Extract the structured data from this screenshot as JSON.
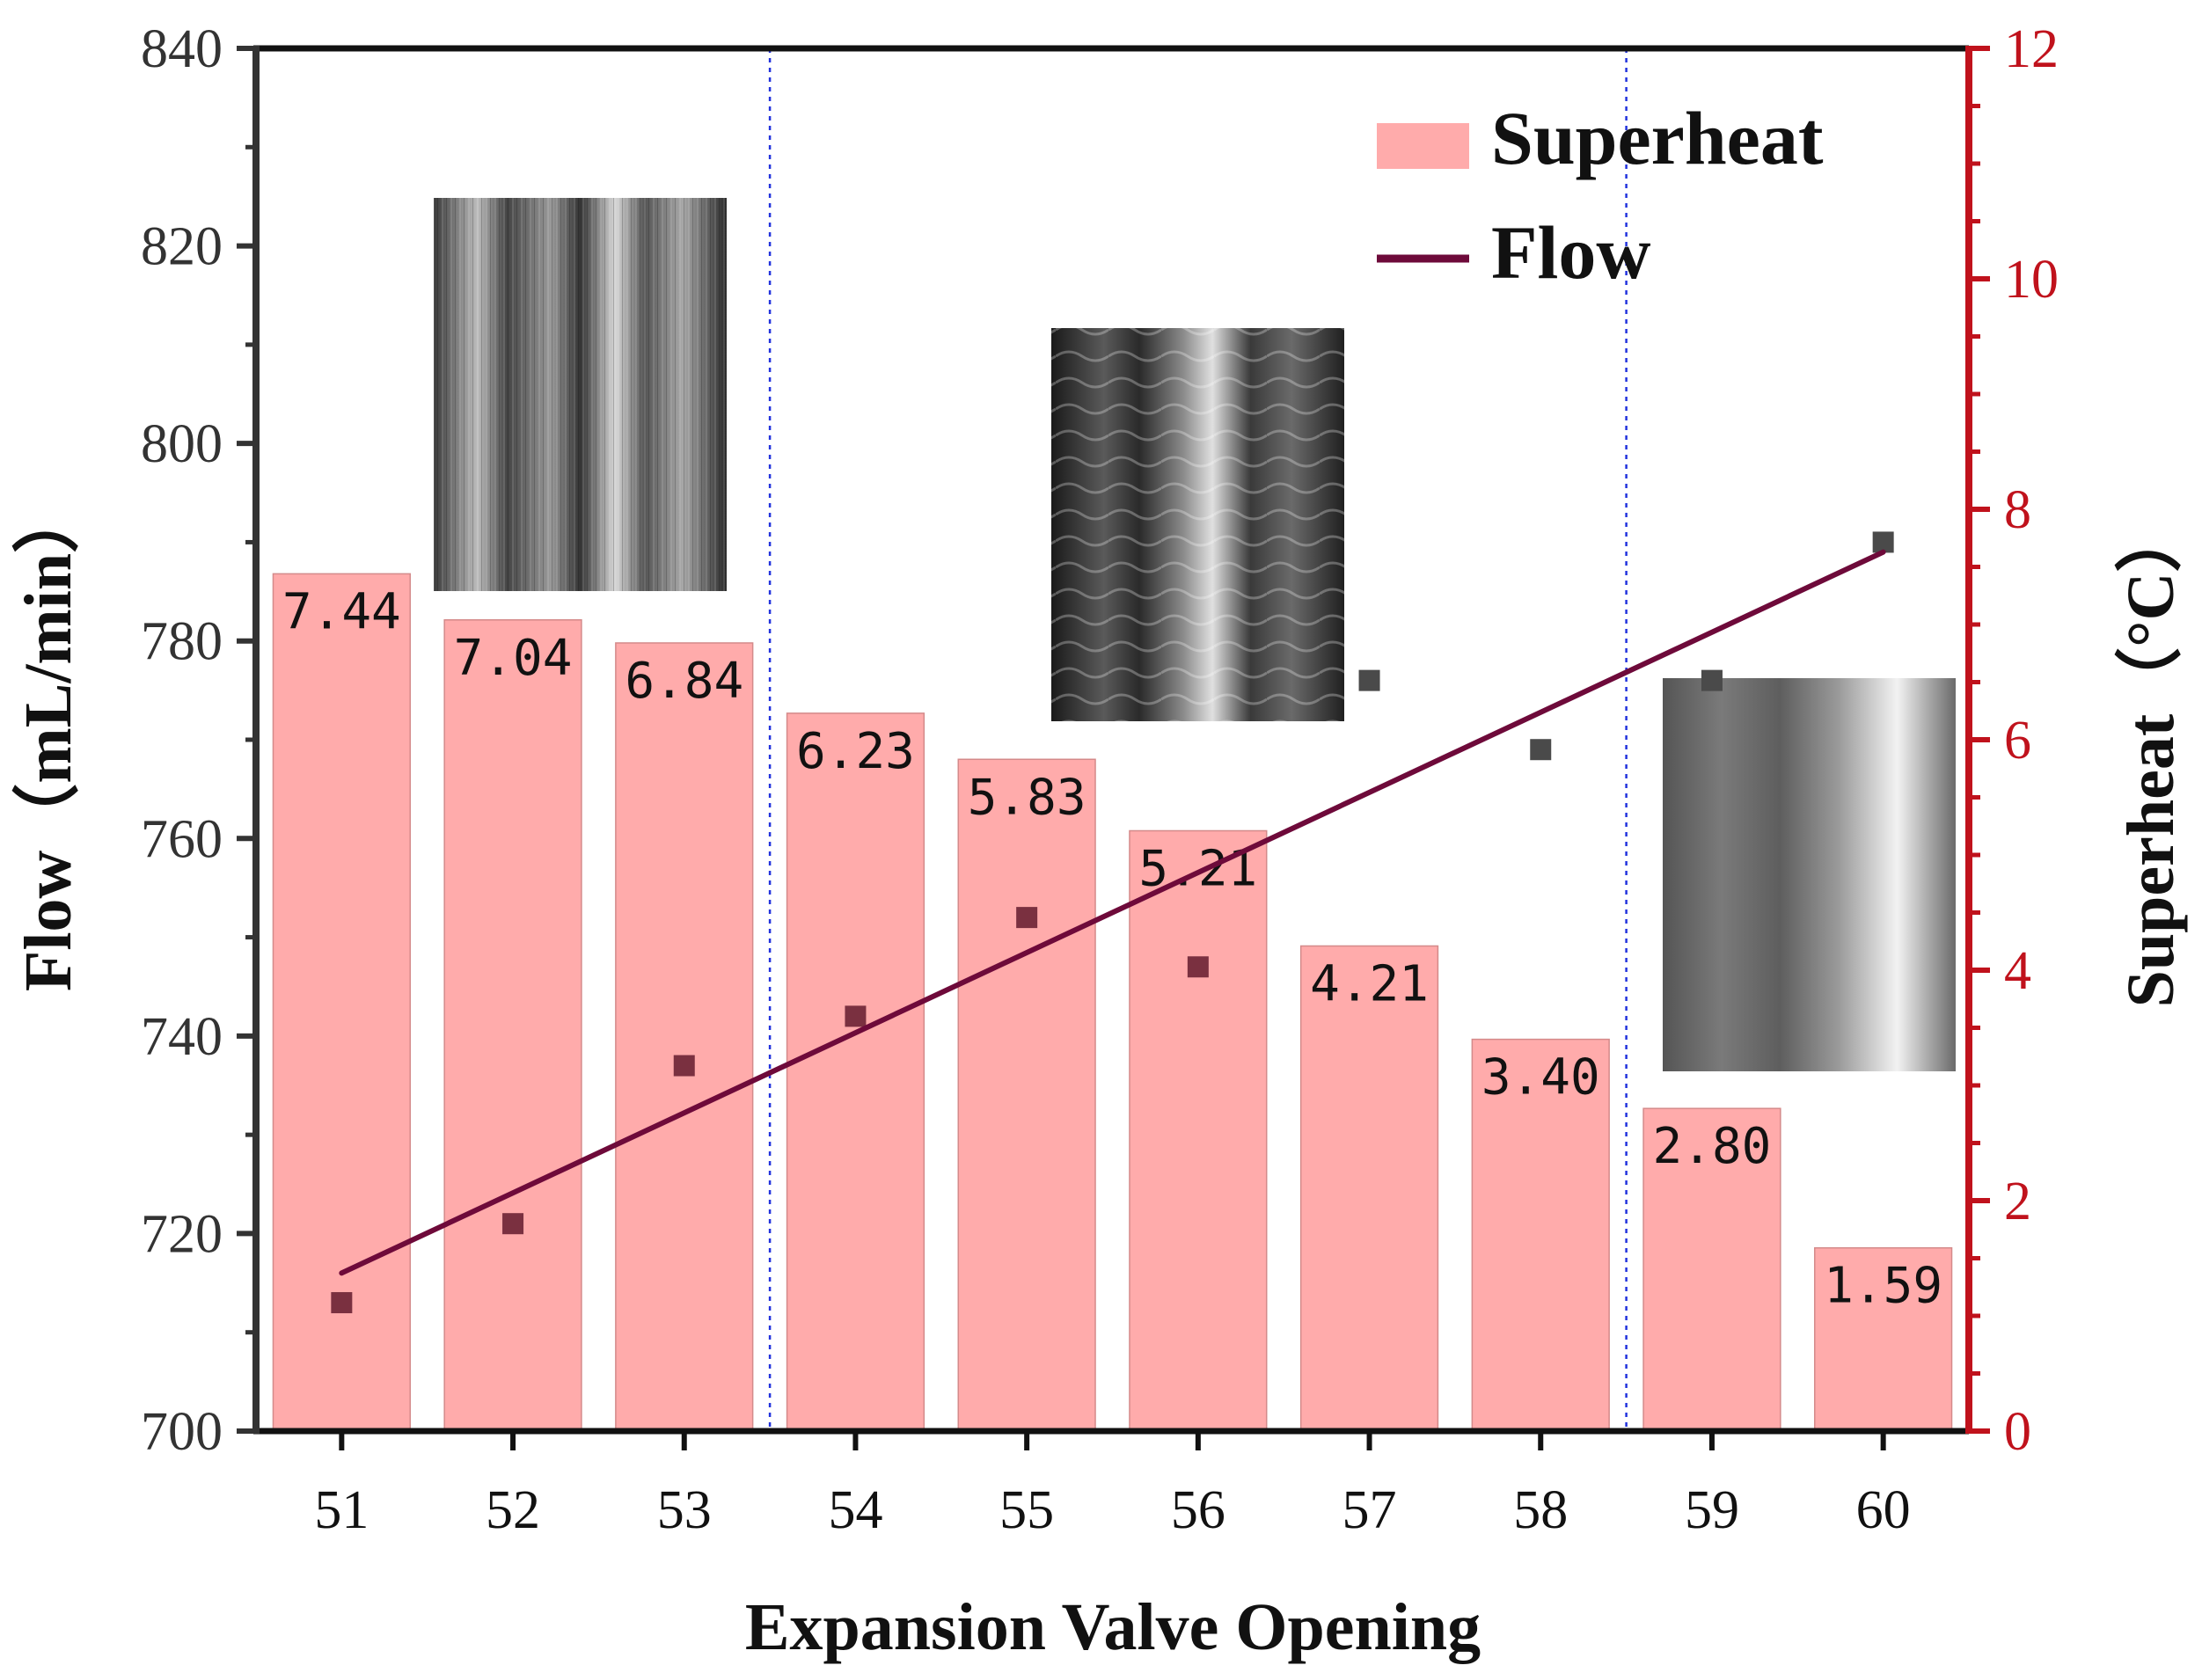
{
  "chart_data": {
    "type": "bar",
    "title": "",
    "xlabel": "Expansion Valve Opening",
    "ylabel_left": "Flow（mL/min）",
    "ylabel_right": "Superheat（°C）",
    "categories": [
      "51",
      "52",
      "53",
      "54",
      "55",
      "56",
      "57",
      "58",
      "59",
      "60"
    ],
    "left_axis": {
      "ylim": [
        700,
        840
      ],
      "ticks": [
        "700",
        "720",
        "740",
        "760",
        "780",
        "800",
        "820",
        "840"
      ]
    },
    "right_axis": {
      "ylim": [
        0,
        12
      ],
      "ticks": [
        "0",
        "2",
        "4",
        "6",
        "8",
        "10",
        "12"
      ],
      "color": "#c0121c"
    },
    "series": [
      {
        "name": "Superheat",
        "type": "bar",
        "axis": "right",
        "values": [
          7.44,
          7.04,
          6.84,
          6.23,
          5.83,
          5.21,
          4.21,
          3.4,
          2.8,
          1.59
        ],
        "labels": [
          "7.44",
          "7.04",
          "6.84",
          "6.23",
          "5.83",
          "5.21",
          "4.21",
          "3.40",
          "2.80",
          "1.59"
        ],
        "color": "#ffabab"
      },
      {
        "name": "Flow",
        "type": "scatter",
        "axis": "left",
        "values": [
          713,
          721,
          737,
          742,
          752,
          747,
          776,
          769,
          776,
          790
        ],
        "color": "#7a3040"
      },
      {
        "name": "Flow",
        "type": "line",
        "axis": "left",
        "fit": {
          "start_x": "51",
          "start_y": 716,
          "end_x": "60",
          "end_y": 789
        },
        "color": "#6e0a3a"
      }
    ],
    "divider_lines": [
      53.5,
      58.5
    ],
    "legend": {
      "position": "top-right",
      "entries": [
        "Superheat",
        "Flow"
      ]
    },
    "inset_images": [
      "flow-pattern-image-1",
      "flow-pattern-image-2",
      "flow-pattern-image-3"
    ],
    "grid": false
  }
}
